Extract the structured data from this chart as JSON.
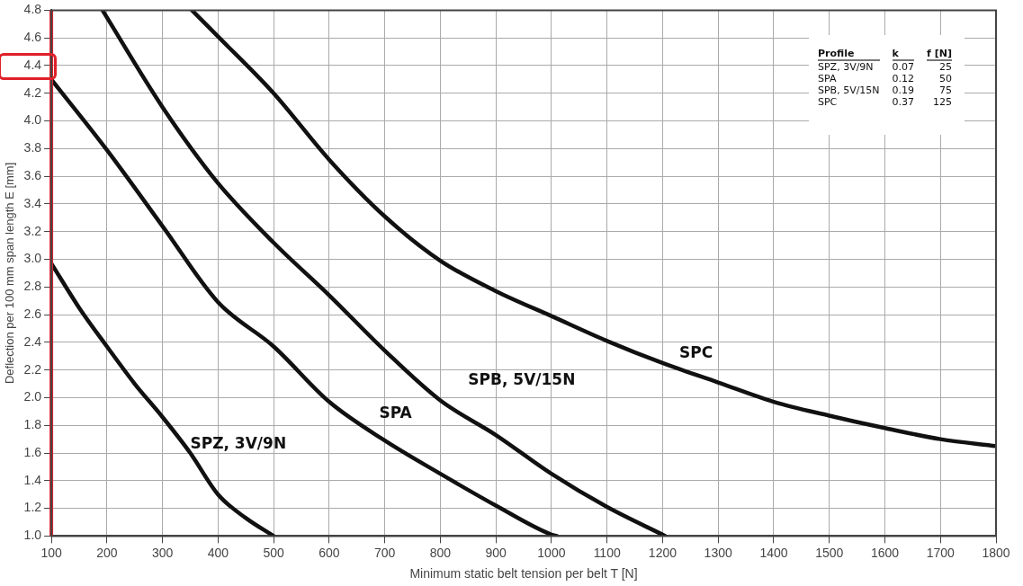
{
  "chart_data": {
    "type": "line",
    "xlabel": "Minimum static belt tension per belt T [N]",
    "ylabel": "Deflection per 100 mm span length E [mm]",
    "xlim": [
      100,
      1800
    ],
    "xticks": [
      100,
      200,
      300,
      400,
      500,
      600,
      700,
      800,
      900,
      1000,
      1100,
      1200,
      1300,
      1400,
      1500,
      1600,
      1700,
      1800
    ],
    "ylim": [
      1.0,
      4.8
    ],
    "yticks": [
      {
        "value": 1.0,
        "label": "1.0"
      },
      {
        "value": 1.2,
        "label": "1.2"
      },
      {
        "value": 1.4,
        "label": "1.4"
      },
      {
        "value": 1.6,
        "label": "1.6"
      },
      {
        "value": 1.8,
        "label": "1.8"
      },
      {
        "value": 2.0,
        "label": "2.0"
      },
      {
        "value": 2.2,
        "label": "2.2"
      },
      {
        "value": 2.4,
        "label": "2.4"
      },
      {
        "value": 2.6,
        "label": "2.6"
      },
      {
        "value": 2.8,
        "label": "2.8"
      },
      {
        "value": 3.0,
        "label": "3.0"
      },
      {
        "value": 3.2,
        "label": "3.2"
      },
      {
        "value": 3.4,
        "label": "3.4"
      },
      {
        "value": 3.6,
        "label": "3.6"
      },
      {
        "value": 3.8,
        "label": "3.8"
      },
      {
        "value": 4.0,
        "label": "4.0"
      },
      {
        "value": 4.2,
        "label": "4.2"
      },
      {
        "value": 4.4,
        "label": "4.4"
      },
      {
        "value": 4.6,
        "label": "4.6"
      },
      {
        "value": 4.8,
        "label": "4.8"
      }
    ],
    "grid": true,
    "legend": false,
    "marker": "none",
    "line_style": "solid",
    "series": [
      {
        "name": "SPZ, 3V/9N",
        "color": "#111111",
        "x": [
          100,
          150,
          200,
          250,
          300,
          350,
          400,
          450,
          500
        ],
        "values": [
          2.97,
          2.65,
          2.37,
          2.1,
          1.86,
          1.6,
          1.3,
          1.13,
          1.0
        ]
      },
      {
        "name": "SPA",
        "color": "#111111",
        "x": [
          100,
          200,
          300,
          400,
          500,
          600,
          700,
          800,
          900,
          1000,
          1010
        ],
        "values": [
          4.3,
          3.79,
          3.24,
          2.69,
          2.37,
          1.97,
          1.69,
          1.45,
          1.22,
          1.01,
          1.0
        ]
      },
      {
        "name": "SPB, 5V/15N",
        "color": "#111111",
        "x": [
          192,
          300,
          400,
          500,
          600,
          700,
          800,
          900,
          1000,
          1100,
          1205
        ],
        "values": [
          4.8,
          4.1,
          3.55,
          3.12,
          2.74,
          2.34,
          1.98,
          1.73,
          1.45,
          1.21,
          1.0
        ]
      },
      {
        "name": "SPC",
        "color": "#111111",
        "x": [
          353,
          400,
          500,
          600,
          700,
          800,
          900,
          1000,
          1100,
          1200,
          1300,
          1400,
          1500,
          1600,
          1700,
          1800
        ],
        "values": [
          4.8,
          4.61,
          4.2,
          3.72,
          3.31,
          2.99,
          2.77,
          2.59,
          2.41,
          2.25,
          2.11,
          1.97,
          1.87,
          1.78,
          1.7,
          1.65
        ]
      }
    ],
    "ref_lines": [
      {
        "axis": "x",
        "value": 100,
        "color": "#e0202a",
        "line_style": "solid"
      }
    ],
    "annotations": [
      "Profile",
      "k",
      "f [N]",
      "SPZ, 3V/9N",
      "0.07",
      "25",
      "SPA",
      "0.12",
      "50",
      "SPB, 5V/15N",
      "0.19",
      "75",
      "SPC",
      "0.37",
      "125"
    ]
  }
}
